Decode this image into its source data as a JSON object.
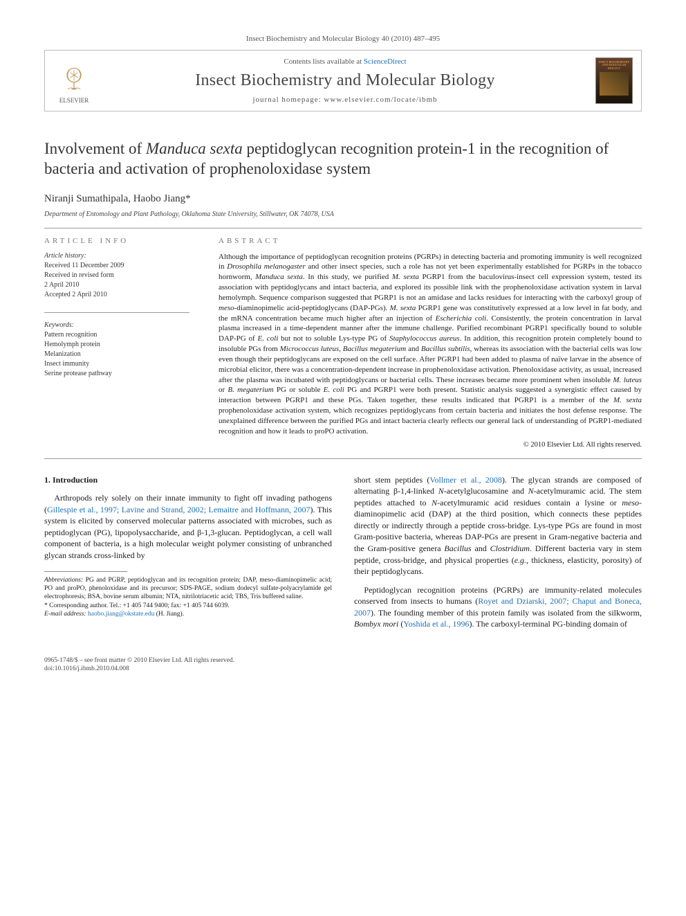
{
  "journal_ref": "Insect Biochemistry and Molecular Biology 40 (2010) 487–495",
  "header": {
    "contents_prefix": "Contents lists available at ",
    "contents_link": "ScienceDirect",
    "journal_name": "Insect Biochemistry and Molecular Biology",
    "homepage": "journal homepage: www.elsevier.com/locate/ibmb",
    "publisher_label": "ELSEVIER",
    "cover_caption": "INSECT BIOCHEMISTRY AND MOLECULAR BIOLOGY"
  },
  "article": {
    "title_before_em": "Involvement of ",
    "title_em": "Manduca sexta",
    "title_after_em": " peptidoglycan recognition protein-1 in the recognition of bacteria and activation of prophenoloxidase system",
    "authors": "Niranji Sumathipala, Haobo Jiang*",
    "affiliation": "Department of Entomology and Plant Pathology, Oklahoma State University, Stillwater, OK 74078, USA"
  },
  "info": {
    "heading": "article info",
    "history_label": "Article history:",
    "history": [
      "Received 11 December 2009",
      "Received in revised form",
      "2 April 2010",
      "Accepted 2 April 2010"
    ],
    "keywords_label": "Keywords:",
    "keywords": [
      "Pattern recognition",
      "Hemolymph protein",
      "Melanization",
      "Insect immunity",
      "Serine protease pathway"
    ]
  },
  "abstract": {
    "heading": "abstract",
    "html": "Although the importance of peptidoglycan recognition proteins (PGRPs) in detecting bacteria and promoting immunity is well recognized in <em>Drosophila melanogaster</em> and other insect species, such a role has not yet been experimentally established for PGRPs in the tobacco hornworm, <em>Manduca sexta</em>. In this study, we purified <em>M. sexta</em> PGRP1 from the baculovirus-insect cell expression system, tested its association with peptidoglycans and intact bacteria, and explored its possible link with the prophenoloxidase activation system in larval hemolymph. Sequence comparison suggested that PGRP1 is not an amidase and lacks residues for interacting with the carboxyl group of <em>meso</em>-diaminopimelic acid-peptidoglycans (DAP-PGs). <em>M. sexta</em> PGRP1 gene was constitutively expressed at a low level in fat body, and the mRNA concentration became much higher after an injection of <em>Escherichia coli</em>. Consistently, the protein concentration in larval plasma increased in a time-dependent manner after the immune challenge. Purified recombinant PGRP1 specifically bound to soluble DAP-PG of <em>E. coli</em> but not to soluble Lys-type PG of <em>Staphylococcus aureus</em>. In addition, this recognition protein completely bound to insoluble PGs from <em>Micrococcus luteus</em>, <em>Bacillus megaterium</em> and <em>Bacillus subtilis</em>, whereas its association with the bacterial cells was low even though their peptidoglycans are exposed on the cell surface. After PGRP1 had been added to plasma of naïve larvae in the absence of microbial elicitor, there was a concentration-dependent increase in prophenoloxidase activation. Phenoloxidase activity, as usual, increased after the plasma was incubated with peptidoglycans or bacterial cells. These increases became more prominent when insoluble <em>M. luteus</em> or <em>B. megaterium</em> PG or soluble <em>E. coli</em> PG and PGRP1 were both present. Statistic analysis suggested a synergistic effect caused by interaction between PGRP1 and these PGs. Taken together, these results indicated that PGRP1 is a member of the <em>M. sexta</em> prophenoloxidase activation system, which recognizes peptidoglycans from certain bacteria and initiates the host defense response. The unexplained difference between the purified PGs and intact bacteria clearly reflects our general lack of understanding of PGRP1-mediated recognition and how it leads to proPO activation.",
    "copyright": "© 2010 Elsevier Ltd. All rights reserved."
  },
  "body": {
    "section_label": "1. Introduction",
    "p1_html": "Arthropods rely solely on their innate immunity to fight off invading pathogens (<span class='cite'>Gillespie et al., 1997; Lavine and Strand, 2002; Lemaitre and Hoffmann, 2007</span>). This system is elicited by conserved molecular patterns associated with microbes, such as peptidoglycan (PG), lipopolysaccharide, and β-1,3-glucan. Peptidoglycan, a cell wall component of bacteria, is a high molecular weight polymer consisting of unbranched glycan strands cross-linked by",
    "p1c_html": "short stem peptides (<span class='cite'>Vollmer et al., 2008</span>). The glycan strands are composed of alternating β-1,4-linked <em>N</em>-acetylglucosamine and <em>N</em>-acetylmuramic acid. The stem peptides attached to <em>N</em>-acetylmuramic acid residues contain a lysine or <em>meso</em>-diaminopimelic acid (DAP) at the third position, which connects these peptides directly or indirectly through a peptide cross-bridge. Lys-type PGs are found in most Gram-positive bacteria, whereas DAP-PGs are present in Gram-negative bacteria and the Gram-positive genera <em>Bacillus</em> and <em>Clostridium</em>. Different bacteria vary in stem peptide, cross-bridge, and physical properties (<em>e.g.</em>, thickness, elasticity, porosity) of their peptidoglycans.",
    "p2_html": "Peptidoglycan recognition proteins (PGRPs) are immunity-related molecules conserved from insects to humans (<span class='cite'>Royet and Dziarski, 2007; Chaput and Boneca, 2007</span>). The founding member of this protein family was isolated from the silkworm, <em>Bombyx mori</em> (<span class='cite'>Yoshida et al., 1996</span>). The carboxyl-terminal PG-binding domain of"
  },
  "footnotes": {
    "abbrev_label": "Abbreviations:",
    "abbrev_text": " PG and PGRP, peptidoglycan and its recognition protein; DAP, meso-diaminopimelic acid; PO and proPO, phenoloxidase and its precursor; SDS-PAGE, sodium dodecyl sulfate-polyacrylamide gel electrophoresis; BSA, bovine serum albumin; NTA, nitrilotriacetic acid; TBS, Tris buffered saline.",
    "corr_label": "* Corresponding author. ",
    "corr_text": "Tel.: +1 405 744 9400; fax: +1 405 744 6039.",
    "email_label": "E-mail address:",
    "email_value": " haobo.jiang@okstate.edu",
    "email_who": " (H. Jiang)."
  },
  "footer": {
    "line1": "0965-1748/$ – see front matter © 2010 Elsevier Ltd. All rights reserved.",
    "line2": "doi:10.1016/j.ibmb.2010.04.008"
  },
  "style": {
    "link_color": "#1b6fb5",
    "text_color": "#1a1a1a",
    "rule_color": "#999999"
  }
}
